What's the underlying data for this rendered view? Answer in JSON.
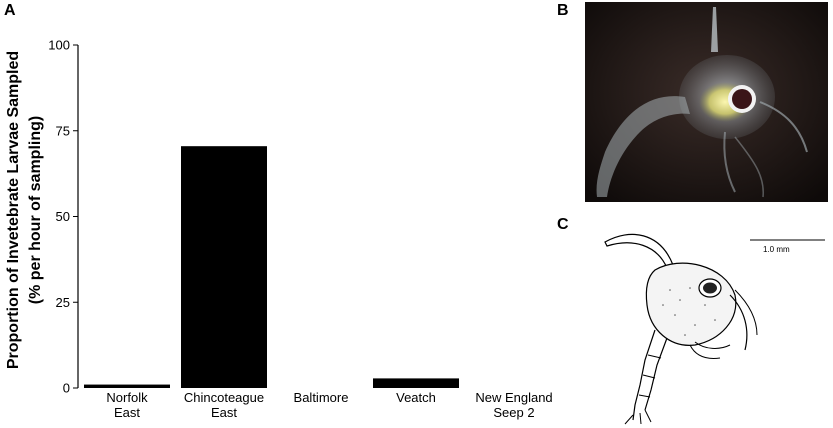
{
  "panels": {
    "a": "A",
    "b": "B",
    "c": "C"
  },
  "chart_data": {
    "type": "bar",
    "categories": [
      [
        "Norfolk",
        "East"
      ],
      [
        "Chincoteague",
        "East"
      ],
      [
        "Baltimore"
      ],
      [
        "Veatch"
      ],
      [
        "New England",
        "Seep 2"
      ]
    ],
    "values": [
      1,
      70.5,
      0,
      2.8,
      0
    ],
    "ylabel": [
      "Proportion of Invetebrate Larvae Sampled",
      "(% per hour of sampling)"
    ],
    "xlabel": "",
    "ylim": [
      0,
      100
    ],
    "yticks": [
      0,
      25,
      50,
      75,
      100
    ],
    "bar_color": "#000000",
    "grid": false
  },
  "drawing": {
    "scale_label": "1.0 mm"
  }
}
